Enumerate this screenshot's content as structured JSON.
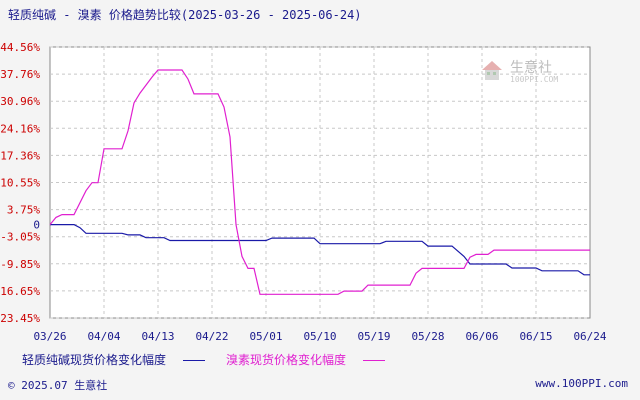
{
  "title": "轻质纯碱 - 溴素 价格趋势比较(2025-03-26 - 2025-06-24)",
  "watermark": {
    "brand": "生意社",
    "site": "100PPI.COM"
  },
  "footer": {
    "left": "© 2025.07 生意社",
    "right": "www.100PPI.com"
  },
  "colors": {
    "background": "#f4f4f4",
    "plot_bg": "#ffffff",
    "grid": "#c8c8c8",
    "ytick": "#cc0000",
    "xtick": "#1a1a8c",
    "series1": "#1a1aa8",
    "series2": "#e020d0"
  },
  "chart_data": {
    "type": "line",
    "title": "轻质纯碱 - 溴素 价格趋势比较(2025-03-26 - 2025-06-24)",
    "xlabel": "",
    "ylabel": "",
    "ylim": [
      -23.45,
      44.56
    ],
    "grid": true,
    "legend_placement": "bottom",
    "y_ticks": [
      "44.56%",
      "37.76%",
      "30.96%",
      "24.16%",
      "17.36%",
      "10.55%",
      "3.75%",
      "0",
      "-3.05%",
      "-9.85%",
      "-16.65%",
      "-23.45%"
    ],
    "y_tick_values": [
      44.56,
      37.76,
      30.96,
      24.16,
      17.36,
      10.55,
      3.75,
      0,
      -3.05,
      -9.85,
      -16.65,
      -23.45
    ],
    "x_ticks": [
      "03/26",
      "04/04",
      "04/13",
      "04/22",
      "05/01",
      "05/10",
      "05/19",
      "05/28",
      "06/06",
      "06/15",
      "06/24"
    ],
    "x_tick_days": [
      0,
      9,
      18,
      27,
      36,
      45,
      54,
      63,
      72,
      81,
      90
    ],
    "x_start": "2025-03-26",
    "x_end": "2025-06-24",
    "series": [
      {
        "name": "轻质纯碱现货价格变化幅度",
        "color": "#1a1aa8",
        "points": [
          [
            "2025-03-26",
            0
          ],
          [
            "2025-03-30",
            0
          ],
          [
            "2025-03-31",
            -0.8
          ],
          [
            "2025-04-01",
            -2.2
          ],
          [
            "2025-04-07",
            -2.2
          ],
          [
            "2025-04-08",
            -2.6
          ],
          [
            "2025-04-10",
            -2.6
          ],
          [
            "2025-04-11",
            -3.3
          ],
          [
            "2025-04-14",
            -3.3
          ],
          [
            "2025-04-15",
            -4.0
          ],
          [
            "2025-05-01",
            -4.0
          ],
          [
            "2025-05-02",
            -3.4
          ],
          [
            "2025-05-09",
            -3.4
          ],
          [
            "2025-05-10",
            -4.8
          ],
          [
            "2025-05-20",
            -4.8
          ],
          [
            "2025-05-21",
            -4.2
          ],
          [
            "2025-05-27",
            -4.2
          ],
          [
            "2025-05-28",
            -5.4
          ],
          [
            "2025-06-01",
            -5.4
          ],
          [
            "2025-06-03",
            -8.0
          ],
          [
            "2025-06-04",
            -9.9
          ],
          [
            "2025-06-10",
            -9.9
          ],
          [
            "2025-06-11",
            -10.9
          ],
          [
            "2025-06-15",
            -10.9
          ],
          [
            "2025-06-16",
            -11.6
          ],
          [
            "2025-06-22",
            -11.6
          ],
          [
            "2025-06-23",
            -12.6
          ],
          [
            "2025-06-24",
            -12.6
          ]
        ]
      },
      {
        "name": "溴素现货价格变化幅度",
        "color": "#e020d0",
        "points": [
          [
            "2025-03-26",
            0
          ],
          [
            "2025-03-27",
            1.8
          ],
          [
            "2025-03-28",
            2.5
          ],
          [
            "2025-03-30",
            2.5
          ],
          [
            "2025-04-01",
            8.5
          ],
          [
            "2025-04-02",
            10.5
          ],
          [
            "2025-04-03",
            10.5
          ],
          [
            "2025-04-04",
            19.0
          ],
          [
            "2025-04-07",
            19.0
          ],
          [
            "2025-04-08",
            23.5
          ],
          [
            "2025-04-09",
            30.5
          ],
          [
            "2025-04-10",
            33.0
          ],
          [
            "2025-04-12",
            37.0
          ],
          [
            "2025-04-13",
            38.8
          ],
          [
            "2025-04-17",
            38.8
          ],
          [
            "2025-04-18",
            36.5
          ],
          [
            "2025-04-19",
            32.8
          ],
          [
            "2025-04-23",
            32.8
          ],
          [
            "2025-04-24",
            29.5
          ],
          [
            "2025-04-25",
            22.0
          ],
          [
            "2025-04-26",
            0
          ],
          [
            "2025-04-27",
            -8.0
          ],
          [
            "2025-04-28",
            -11.0
          ],
          [
            "2025-04-29",
            -11.0
          ],
          [
            "2025-04-30",
            -17.5
          ],
          [
            "2025-05-13",
            -17.5
          ],
          [
            "2025-05-14",
            -16.7
          ],
          [
            "2025-05-17",
            -16.7
          ],
          [
            "2025-05-18",
            -15.2
          ],
          [
            "2025-05-25",
            -15.2
          ],
          [
            "2025-05-26",
            -12.2
          ],
          [
            "2025-05-27",
            -11.0
          ],
          [
            "2025-06-03",
            -11.0
          ],
          [
            "2025-06-04",
            -8.2
          ],
          [
            "2025-06-05",
            -7.5
          ],
          [
            "2025-06-07",
            -7.5
          ],
          [
            "2025-06-08",
            -6.4
          ],
          [
            "2025-06-24",
            -6.4
          ]
        ]
      }
    ]
  }
}
